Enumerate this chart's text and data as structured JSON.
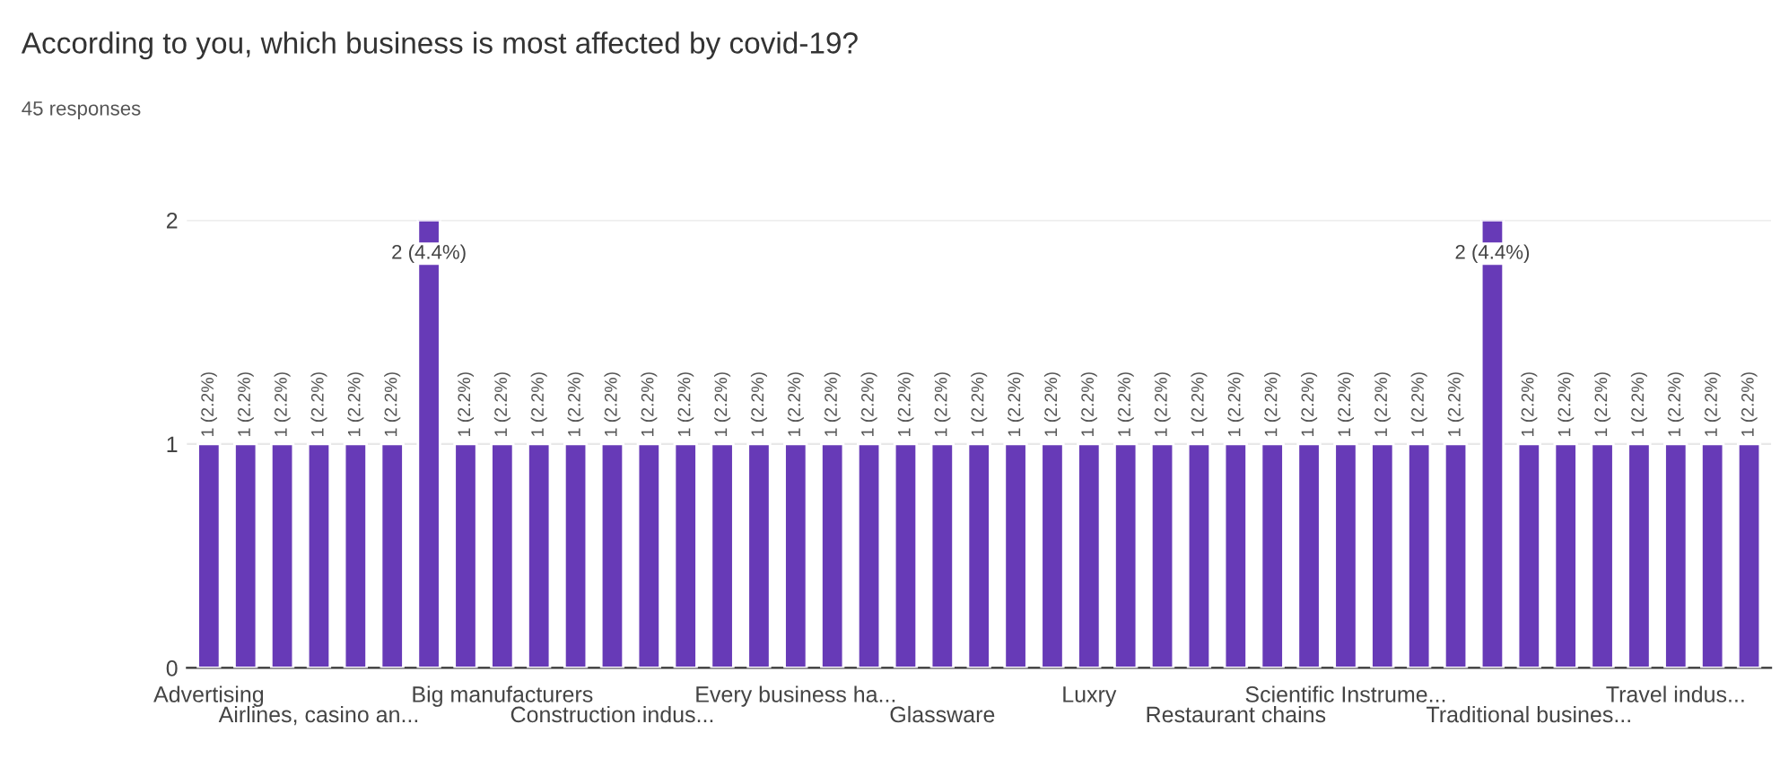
{
  "chart_data": {
    "type": "bar",
    "title": "According to you, which business is most affected by covid-19?",
    "subtitle": "45 responses",
    "categories": [
      "Advertising",
      null,
      null,
      "Airlines, casino an...",
      null,
      null,
      null,
      null,
      "Big manufacturers",
      null,
      null,
      "Construction indus...",
      null,
      null,
      null,
      null,
      "Every business ha...",
      null,
      null,
      null,
      "Glassware",
      null,
      null,
      null,
      "Luxry",
      null,
      null,
      null,
      "Restaurant chains",
      null,
      null,
      "Scientific Instrume...",
      null,
      null,
      null,
      null,
      "Traditional busines...",
      null,
      null,
      null,
      "Travel indus...",
      null,
      null
    ],
    "values": [
      1,
      1,
      1,
      1,
      1,
      1,
      2,
      1,
      1,
      1,
      1,
      1,
      1,
      1,
      1,
      1,
      1,
      1,
      1,
      1,
      1,
      1,
      1,
      1,
      1,
      1,
      1,
      1,
      1,
      1,
      1,
      1,
      1,
      1,
      1,
      2,
      1,
      1,
      1,
      1,
      1,
      1,
      1
    ],
    "value_labels": [
      "1 (2.2%)",
      "1 (2.2%)",
      "1 (2.2%)",
      "1 (2.2%)",
      "1 (2.2%)",
      "1 (2.2%)",
      "2 (4.4%)",
      "1 (2.2%)",
      "1 (2.2%)",
      "1 (2.2%)",
      "1 (2.2%)",
      "1 (2.2%)",
      "1 (2.2%)",
      "1 (2.2%)",
      "1 (2.2%)",
      "1 (2.2%)",
      "1 (2.2%)",
      "1 (2.2%)",
      "1 (2.2%)",
      "1 (2.2%)",
      "1 (2.2%)",
      "1 (2.2%)",
      "1 (2.2%)",
      "1 (2.2%)",
      "1 (2.2%)",
      "1 (2.2%)",
      "1 (2.2%)",
      "1 (2.2%)",
      "1 (2.2%)",
      "1 (2.2%)",
      "1 (2.2%)",
      "1 (2.2%)",
      "1 (2.2%)",
      "1 (2.2%)",
      "1 (2.2%)",
      "2 (4.4%)",
      "1 (2.2%)",
      "1 (2.2%)",
      "1 (2.2%)",
      "1 (2.2%)",
      "1 (2.2%)",
      "1 (2.2%)",
      "1 (2.2%)"
    ],
    "color": "#673ab7",
    "ylim": [
      0,
      2
    ],
    "yticks": [
      0,
      1,
      2
    ],
    "grid": "y"
  }
}
